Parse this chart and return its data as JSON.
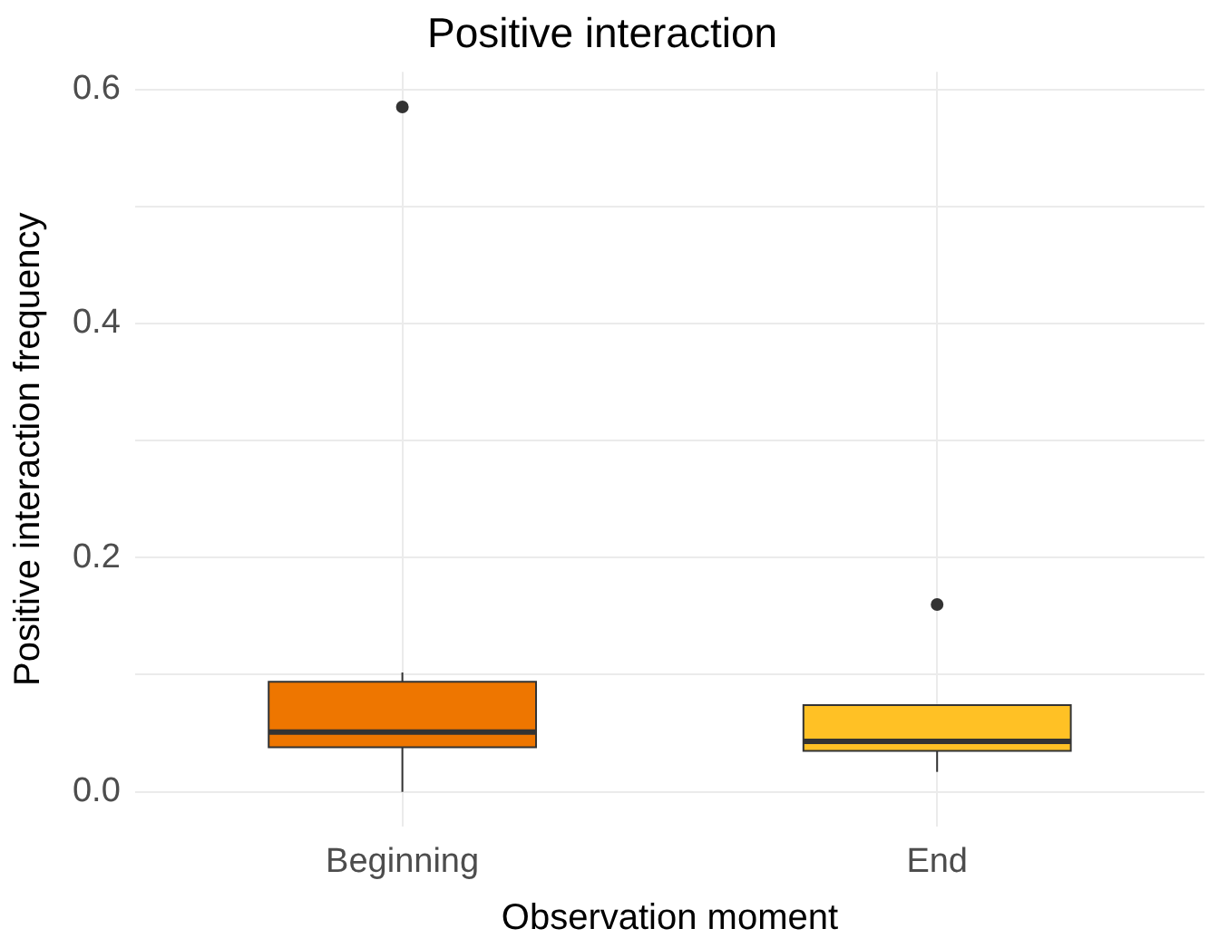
{
  "chart_data": {
    "type": "box",
    "title": "Positive interaction",
    "xlabel": "Observation moment",
    "ylabel": "Positive interaction frequency",
    "categories": [
      "Beginning",
      "End"
    ],
    "colors": [
      "#ee7600",
      "#ffc125"
    ],
    "boxes": [
      {
        "low": 0,
        "q1": 0.038,
        "median": 0.051,
        "q3": 0.094,
        "high": 0.102,
        "outliers": [
          0.585
        ]
      },
      {
        "low": 0.017,
        "q1": 0.035,
        "median": 0.043,
        "q3": 0.074,
        "high": 0.074,
        "outliers": [
          0.16
        ]
      }
    ],
    "ylim": [
      -0.03,
      0.615
    ],
    "yticks": [
      {
        "value": 0,
        "label": "0.0"
      },
      {
        "value": 0.1,
        "label": null
      },
      0.2,
      {
        "value": 0.3,
        "label": null
      },
      0.4,
      {
        "value": 0.5,
        "label": null
      },
      0.6
    ],
    "grid": true,
    "legend": false
  }
}
